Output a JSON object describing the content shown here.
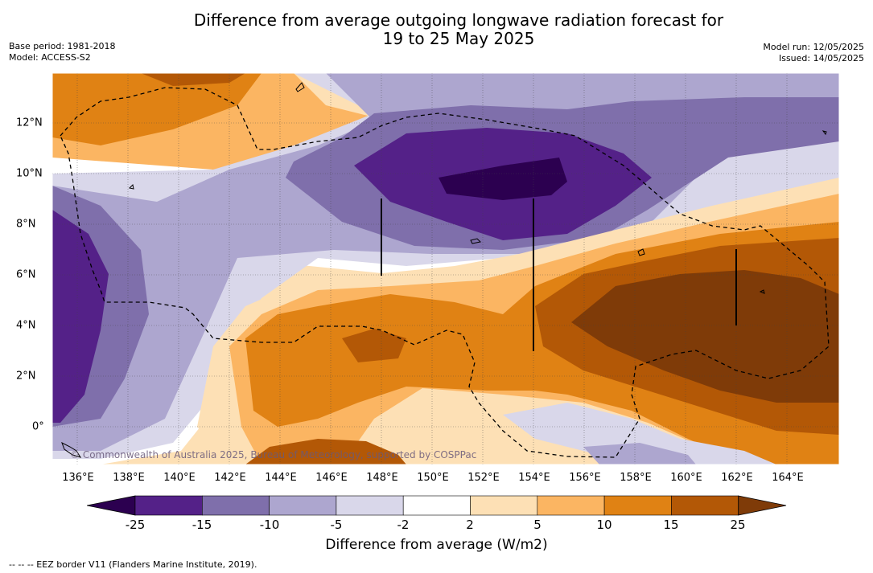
{
  "title_line1": "Difference from average outgoing longwave radiation forecast for",
  "title_line2": "19 to 25 May 2025",
  "base_period": "Base period: 1981-2018",
  "model": "Model: ACCESS-S2",
  "model_run": "Model run: 12/05/2025",
  "issued": "Issued: 14/05/2025",
  "copyright": "© Commonwealth of Australia 2025, Bureau of Meteorology, supported by COSPPac",
  "lon_labels": [
    "136°E",
    "138°E",
    "140°E",
    "142°E",
    "144°E",
    "146°E",
    "148°E",
    "150°E",
    "152°E",
    "154°E",
    "156°E",
    "158°E",
    "160°E",
    "162°E",
    "164°E"
  ],
  "lat_labels": [
    "12°N",
    "10°N",
    "8°N",
    "6°N",
    "4°N",
    "2°N",
    "0°"
  ],
  "colorbar": {
    "ticks": [
      "-25",
      "-15",
      "-10",
      "-5",
      "-2",
      "2",
      "5",
      "10",
      "15",
      "25"
    ],
    "title": "Difference from average (W/m2)",
    "colors": [
      "#2c0050",
      "#542188",
      "#7f6fab",
      "#ada6cf",
      "#d9d7ea",
      "#ffffff",
      "#fde0b5",
      "#fbb562",
      "#e08214",
      "#b35806",
      "#7f3b08"
    ]
  },
  "footnote": "--  --  -- EEZ border V11 (Flanders Marine Institute, 2019).",
  "map_extent": {
    "lon_range": [
      135,
      166
    ],
    "lat_range": [
      -1.5,
      14
    ]
  }
}
